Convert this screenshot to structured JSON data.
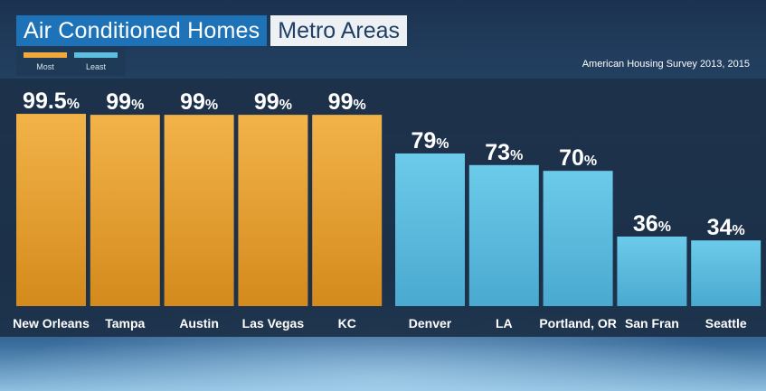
{
  "header": {
    "title": "Air Conditioned Homes",
    "subtitle": "Metro Areas",
    "source": "American Housing Survey 2013, 2015"
  },
  "legend": {
    "most_label": "Most",
    "least_label": "Least",
    "most_color": "#f0a93a",
    "least_color": "#5fbfe0"
  },
  "chart_data": {
    "type": "bar",
    "categories": [
      "New Orleans",
      "Tampa",
      "Austin",
      "Las Vegas",
      "KC",
      "Denver",
      "LA",
      "Portland, OR",
      "San Fran",
      "Seattle"
    ],
    "values": [
      99.5,
      99,
      99,
      99,
      99,
      79,
      73,
      70,
      36,
      34
    ],
    "value_labels": [
      "99.5",
      "99",
      "99",
      "99",
      "99",
      "79",
      "73",
      "70",
      "36",
      "34"
    ],
    "value_suffix": "%",
    "groups": [
      "most",
      "most",
      "most",
      "most",
      "most",
      "least",
      "least",
      "least",
      "least",
      "least"
    ],
    "colors": {
      "most": "#f0a93a",
      "least": "#5fbfe0"
    },
    "ylim": [
      0,
      100
    ],
    "title": "Air Conditioned Homes",
    "xlabel": "",
    "ylabel": ""
  }
}
